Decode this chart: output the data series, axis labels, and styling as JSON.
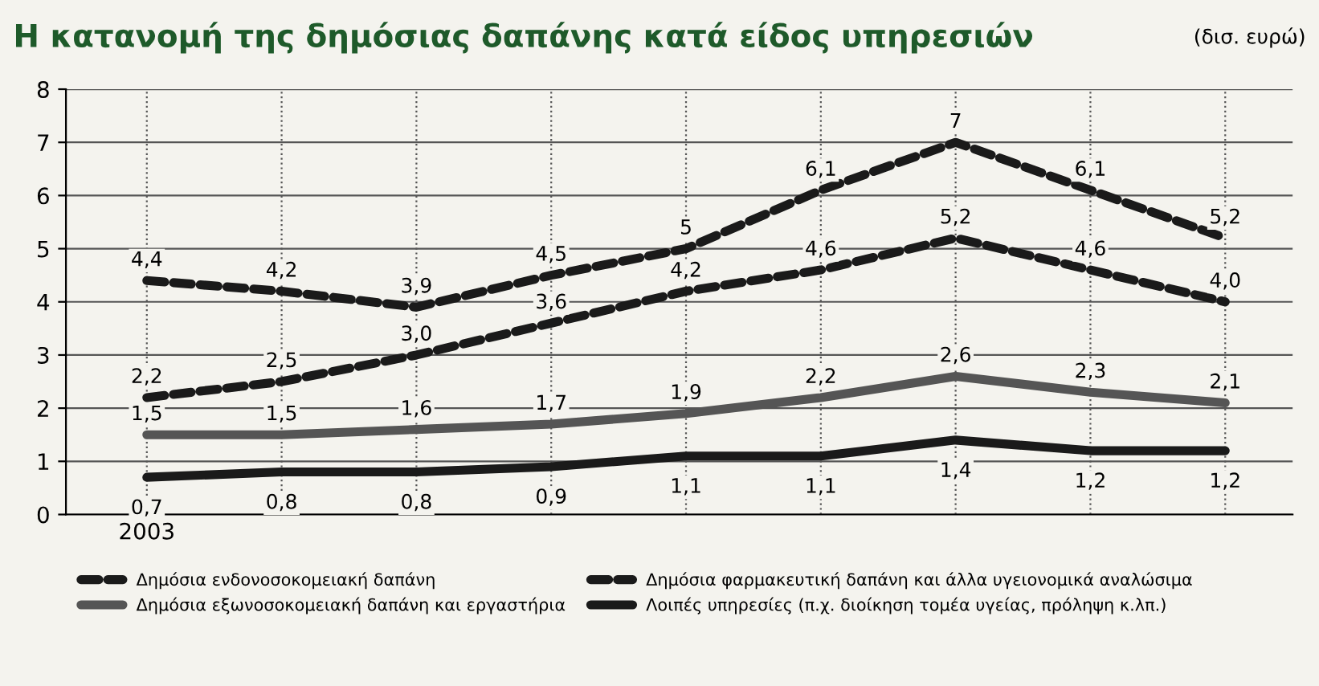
{
  "chart_data": {
    "type": "line",
    "title": "Η κατανομή της δημόσιας δαπάνης κατά είδος υπηρεσιών",
    "subtitle": "(δισ. ευρώ)",
    "categories": [
      "2003",
      null,
      null,
      null,
      null,
      null,
      null,
      null,
      null
    ],
    "ylim": [
      0,
      8
    ],
    "yticks": [
      0,
      1,
      2,
      3,
      4,
      5,
      6,
      7,
      8
    ],
    "grid": true,
    "legend": "bottom",
    "marker": "none",
    "series": [
      {
        "name": "Δημόσια ενδονοσοκομειακή δαπάνη",
        "color": "#1a1a1a",
        "line_style": "dashed",
        "values": [
          4.4,
          4.2,
          3.9,
          4.5,
          5,
          6.1,
          7,
          6.1,
          5.2
        ],
        "value_labels": [
          "4,4",
          "4,2",
          "3,9",
          "4,5",
          "5",
          "6,1",
          "7",
          "6,1",
          "5,2"
        ]
      },
      {
        "name": "Δημόσια φαρμακευτική δαπάνη και άλλα υγειονομικά αναλώσιμα",
        "color": "#1a1a1a",
        "line_style": "dashed",
        "values": [
          2.2,
          2.5,
          3.0,
          3.6,
          4.2,
          4.6,
          5.2,
          4.6,
          4.0
        ],
        "value_labels": [
          "2,2",
          "2,5",
          "3,0",
          "3,6",
          "4,2",
          "4,6",
          "5,2",
          "4,6",
          "4,0"
        ]
      },
      {
        "name": "Δημόσια εξωνοσοκομειακή δαπάνη και εργαστήρια",
        "color": "#555555",
        "line_style": "solid",
        "values": [
          1.5,
          1.5,
          1.6,
          1.7,
          1.9,
          2.2,
          2.6,
          2.3,
          2.1
        ],
        "value_labels": [
          "1,5",
          "1,5",
          "1,6",
          "1,7",
          "1,9",
          "2,2",
          "2,6",
          "2,3",
          "2,1"
        ]
      },
      {
        "name": "Λοιπές υπηρεσίες (π.χ. διοίκηση τομέα υγείας, πρόληψη κ.λπ.)",
        "color": "#1a1a1a",
        "line_style": "solid",
        "values": [
          0.7,
          0.8,
          0.8,
          0.9,
          1.1,
          1.1,
          1.4,
          1.2,
          1.2
        ],
        "value_labels": [
          "0,7",
          "0,8",
          "0,8",
          "0,9",
          "1,1",
          "1,1",
          "1,4",
          "1,2",
          "1,2"
        ]
      }
    ]
  }
}
